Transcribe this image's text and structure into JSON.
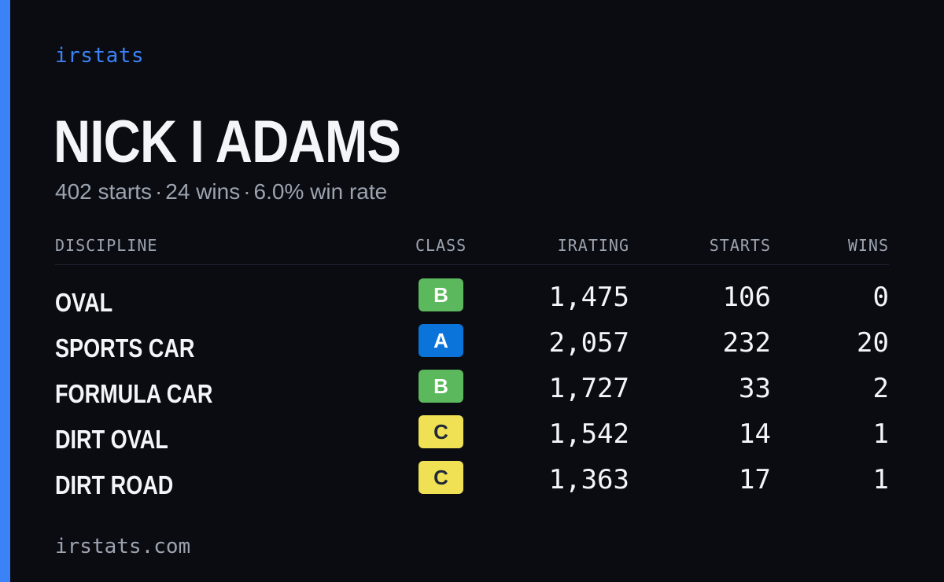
{
  "brand": "irstats",
  "driver": {
    "name": "NICK I ADAMS",
    "starts_text": "402 starts",
    "wins_text": "24 wins",
    "win_rate_text": "6.0% win rate",
    "separator": "·"
  },
  "table": {
    "headers": {
      "discipline": "DISCIPLINE",
      "class": "CLASS",
      "irating": "IRATING",
      "starts": "STARTS",
      "wins": "WINS"
    },
    "rows": [
      {
        "discipline": "OVAL",
        "class": "B",
        "irating": "1,475",
        "starts": "106",
        "wins": "0"
      },
      {
        "discipline": "SPORTS CAR",
        "class": "A",
        "irating": "2,057",
        "starts": "232",
        "wins": "20"
      },
      {
        "discipline": "FORMULA CAR",
        "class": "B",
        "irating": "1,727",
        "starts": "33",
        "wins": "2"
      },
      {
        "discipline": "DIRT OVAL",
        "class": "C",
        "irating": "1,542",
        "starts": "14",
        "wins": "1"
      },
      {
        "discipline": "DIRT ROAD",
        "class": "C",
        "irating": "1,363",
        "starts": "17",
        "wins": "1"
      }
    ]
  },
  "class_colors": {
    "A": {
      "bg": "#0a74da",
      "fg": "#ffffff"
    },
    "B": {
      "bg": "#5cb85c",
      "fg": "#ffffff"
    },
    "C": {
      "bg": "#f0e054",
      "fg": "#1f2937"
    }
  },
  "colors": {
    "accent": "#3b82f6",
    "background": "#0a0c12",
    "text": "#f4f5f8",
    "muted": "#9ca3af"
  },
  "footer": "irstats.com"
}
